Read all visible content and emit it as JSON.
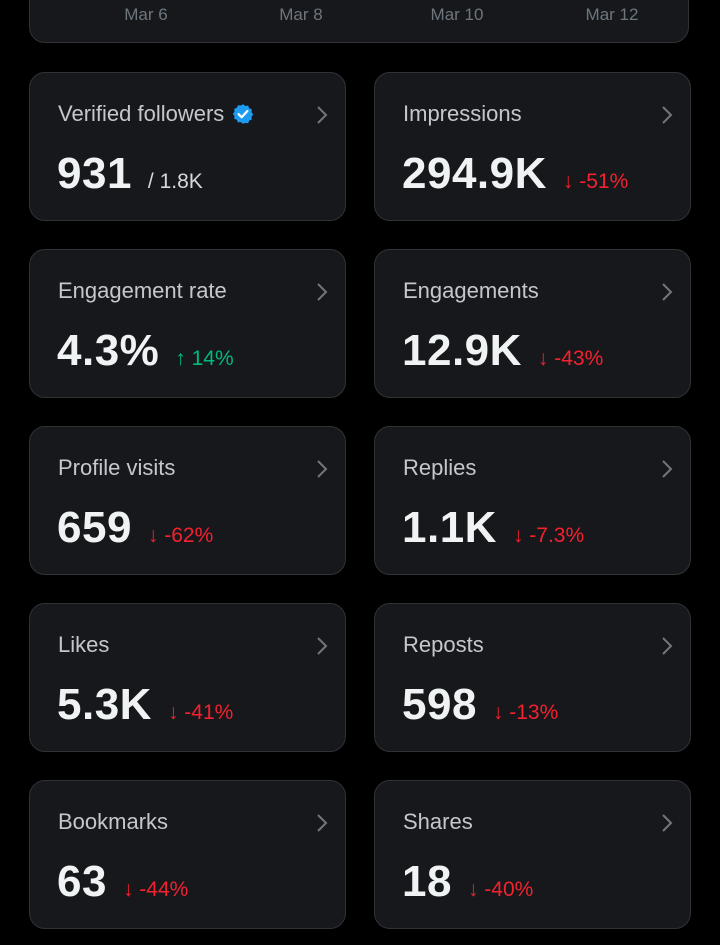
{
  "chart": {
    "x_labels": [
      "Mar 6",
      "Mar 8",
      "Mar 10",
      "Mar 12"
    ]
  },
  "metrics": [
    {
      "title": "Verified followers",
      "value": "931",
      "sub": "/ 1.8K",
      "icon": "verified-badge-icon",
      "accent": "#1d9bf0"
    },
    {
      "title": "Impressions",
      "value": "294.9K",
      "change": "↓ -51%",
      "direction": "down"
    },
    {
      "title": "Engagement rate",
      "value": "4.3%",
      "change": "↑ 14%",
      "direction": "up"
    },
    {
      "title": "Engagements",
      "value": "12.9K",
      "change": "↓ -43%",
      "direction": "down"
    },
    {
      "title": "Profile visits",
      "value": "659",
      "change": "↓ -62%",
      "direction": "down"
    },
    {
      "title": "Replies",
      "value": "1.1K",
      "change": "↓ -7.3%",
      "direction": "down"
    },
    {
      "title": "Likes",
      "value": "5.3K",
      "change": "↓ -41%",
      "direction": "down"
    },
    {
      "title": "Reposts",
      "value": "598",
      "change": "↓ -13%",
      "direction": "down"
    },
    {
      "title": "Bookmarks",
      "value": "63",
      "change": "↓ -44%",
      "direction": "down"
    },
    {
      "title": "Shares",
      "value": "18",
      "change": "↓ -40%",
      "direction": "down"
    }
  ],
  "colors": {
    "background": "#000000",
    "card": "#16181c",
    "border": "#2f3336",
    "negative": "#f4212e",
    "positive": "#00ba7c",
    "verified": "#1d9bf0"
  }
}
